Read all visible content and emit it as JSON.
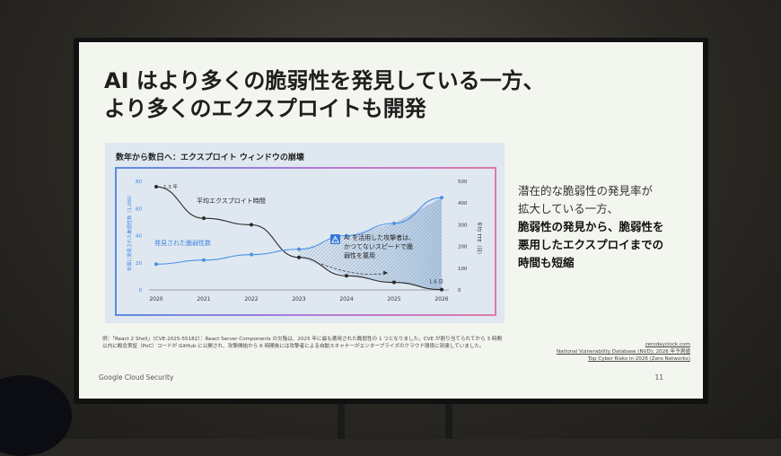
{
  "slide": {
    "title_line1": "AI はより多くの脆弱性を発見している一方、",
    "title_line2": "より多くのエクスプロイトも開発",
    "chart_heading": "数年から数日へ：エクスプロイト ウィンドウの崩壊",
    "side_text_1": "潜在的な脆弱性の発見率が",
    "side_text_2": "拡大している一方、",
    "side_text_3": "脆弱性の発見から、脆弱性を",
    "side_text_4": "悪用したエクスプロイまでの",
    "side_text_5": "時間も短縮",
    "footnote_1": "例：「React 2 Shell」（CVE-2025-55182）：React Server Components の欠陥は、2025 年に最も悪用された脆弱性の 1 つとなりました。CVE が割り当てられてから 3 時間",
    "footnote_2": "以内に概念実証（PoC）コードが GitHub に公開され、攻撃開始から 6 時間後には攻撃者による自動スキャナーがエンタープライズのクラウド環境に到達していました。",
    "ref_1": "zerodayclock.com",
    "ref_2": "National Vulnerability Database (NVD); 2026 年予測値",
    "ref_3": "Top Cyber Risks in 2026 (Zero Networks)",
    "brand": "Google Cloud Security",
    "page_number": "11"
  },
  "chart_data": {
    "type": "line",
    "x": [
      "2020",
      "2021",
      "2022",
      "2023",
      "2024",
      "2025",
      "2026"
    ],
    "series": [
      {
        "name": "平均エクスプロイト時間",
        "axis": "right",
        "color": "#2a2a2a",
        "values": [
          475,
          330,
          300,
          150,
          65,
          35,
          1.6
        ]
      },
      {
        "name": "発見された脆弱性数",
        "axis": "left",
        "color": "#4a90e8",
        "values": [
          19,
          22,
          26,
          30,
          40,
          49,
          68
        ]
      }
    ],
    "yleft_label": "年間に発見された脆弱性数（1,000）",
    "yleft_ticks": [
      "0",
      "20",
      "40",
      "60",
      "80"
    ],
    "yleft_range": [
      0,
      80
    ],
    "yright_label": "平均 TTE（日）",
    "yright_ticks": [
      "0",
      "100",
      "200",
      "300",
      "400",
      "500"
    ],
    "yright_range": [
      0,
      500
    ],
    "start_label": "1.3 年",
    "end_label": "1.6 日",
    "callout_1": "AI を活用した攻撃者は、",
    "callout_2": "かつてないスピードで脆",
    "callout_3": "弱性を悪用",
    "warning_icon": "warning-triangle-icon",
    "colors": {
      "accent": "#4a90e8",
      "line": "#2a2a2a",
      "shade": "#9fb8d0"
    }
  }
}
